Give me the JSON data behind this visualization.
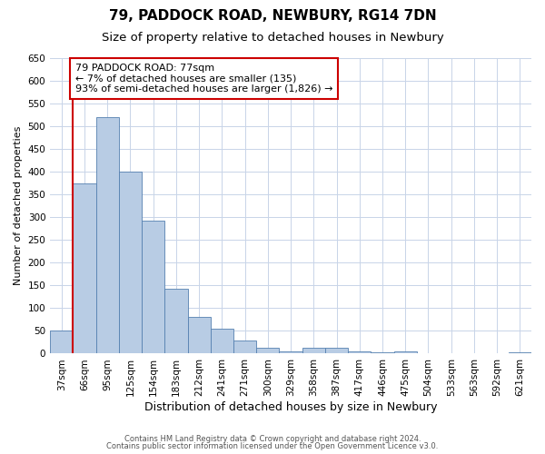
{
  "title1": "79, PADDOCK ROAD, NEWBURY, RG14 7DN",
  "title2": "Size of property relative to detached houses in Newbury",
  "xlabel": "Distribution of detached houses by size in Newbury",
  "ylabel": "Number of detached properties",
  "categories": [
    "37sqm",
    "66sqm",
    "95sqm",
    "125sqm",
    "154sqm",
    "183sqm",
    "212sqm",
    "241sqm",
    "271sqm",
    "300sqm",
    "329sqm",
    "358sqm",
    "387sqm",
    "417sqm",
    "446sqm",
    "475sqm",
    "504sqm",
    "533sqm",
    "563sqm",
    "592sqm",
    "621sqm"
  ],
  "values": [
    50,
    375,
    520,
    400,
    292,
    143,
    80,
    55,
    28,
    12,
    5,
    12,
    12,
    5,
    3,
    5,
    0,
    0,
    0,
    0,
    2
  ],
  "bar_color": "#b8cce4",
  "bar_edgecolor": "#5580b0",
  "ylim": [
    0,
    650
  ],
  "yticks": [
    0,
    50,
    100,
    150,
    200,
    250,
    300,
    350,
    400,
    450,
    500,
    550,
    600,
    650
  ],
  "vline_x": 0.5,
  "vline_color": "#cc0000",
  "annotation_text": "79 PADDOCK ROAD: 77sqm\n← 7% of detached houses are smaller (135)\n93% of semi-detached houses are larger (1,826) →",
  "footer1": "Contains HM Land Registry data © Crown copyright and database right 2024.",
  "footer2": "Contains public sector information licensed under the Open Government Licence v3.0.",
  "bg_color": "#ffffff",
  "grid_color": "#c8d4e8",
  "title1_fontsize": 11,
  "title2_fontsize": 9.5,
  "tick_fontsize": 7.5,
  "xlabel_fontsize": 9,
  "ylabel_fontsize": 8,
  "annotation_fontsize": 8
}
